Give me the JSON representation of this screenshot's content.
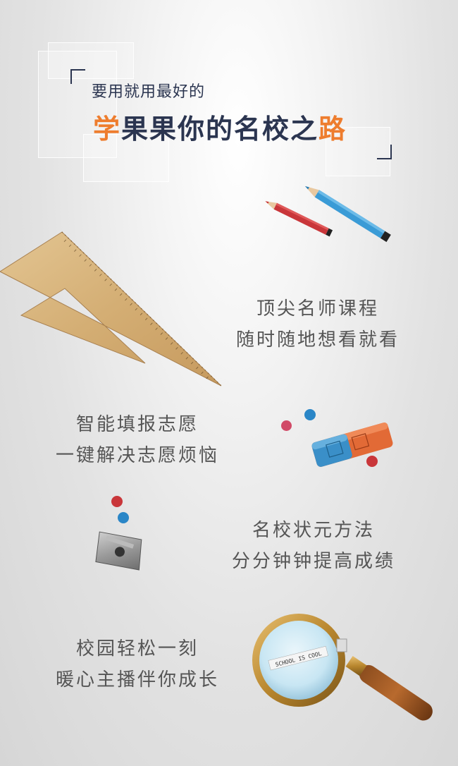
{
  "header": {
    "subtitle": "要用就用最好的",
    "title_part1": "学",
    "title_part2": "果果你的名校之",
    "title_part3": "路"
  },
  "features": [
    {
      "line1": "顶尖名师课程",
      "line2": "随时随地想看就看"
    },
    {
      "line1": "智能填报志愿",
      "line2": "一键解决志愿烦恼"
    },
    {
      "line1": "名校状元方法",
      "line2": "分分钟钟提高成绩"
    },
    {
      "line1": "校园轻松一刻",
      "line2": "暖心主播伴你成长"
    }
  ],
  "magnifier_text": "SCHOOL IS COOL",
  "colors": {
    "navy": "#2b3550",
    "orange": "#ee7d2e",
    "red_dot": "#c9363a",
    "blue_dot": "#2a86c7"
  },
  "icons": [
    "pencil-red-icon",
    "pencil-blue-icon",
    "triangle-ruler-icon",
    "eraser-icon",
    "sharpener-icon",
    "magnifying-glass-icon"
  ]
}
